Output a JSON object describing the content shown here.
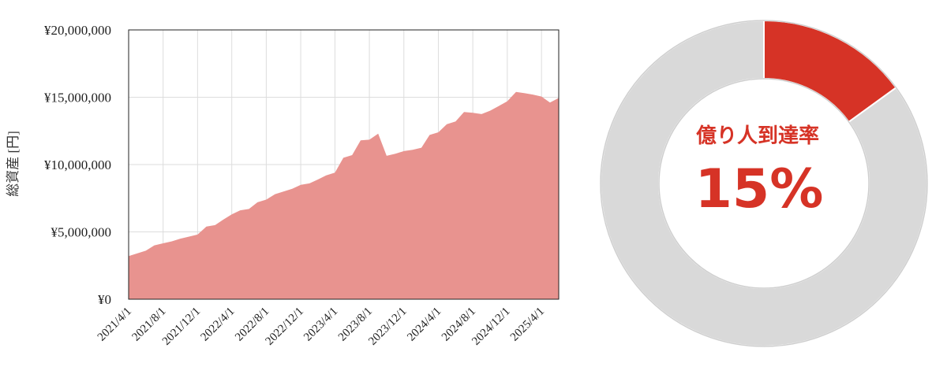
{
  "chart_data": [
    {
      "type": "area",
      "title": "",
      "xlabel": "",
      "ylabel": "総資産 [円]",
      "ylim": [
        0,
        20000000
      ],
      "yticks": [
        0,
        5000000,
        10000000,
        15000000,
        20000000
      ],
      "ytick_labels": [
        "¥0",
        "¥5,000,000",
        "¥10,000,000",
        "¥15,000,000",
        "¥20,000,000"
      ],
      "xticks": [
        "2021/4/1",
        "2021/8/1",
        "2021/12/1",
        "2022/4/1",
        "2022/8/1",
        "2022/12/1",
        "2023/4/1",
        "2023/8/1",
        "2023/12/1",
        "2024/4/1",
        "2024/8/1",
        "2024/12/1",
        "2025/4/1"
      ],
      "xlim": [
        "2021/4/1",
        "2025/6/1"
      ],
      "grid": true,
      "color": "#e8938f",
      "series": [
        {
          "x": [
            "2021/4/1",
            "2021/5/1",
            "2021/6/1",
            "2021/7/1",
            "2021/8/1",
            "2021/9/1",
            "2021/10/1",
            "2021/11/1",
            "2021/12/1",
            "2022/1/1",
            "2022/2/1",
            "2022/3/1",
            "2022/4/1",
            "2022/5/1",
            "2022/6/1",
            "2022/7/1",
            "2022/8/1",
            "2022/9/1",
            "2022/10/1",
            "2022/11/1",
            "2022/12/1",
            "2023/1/1",
            "2023/2/1",
            "2023/3/1",
            "2023/4/1",
            "2023/5/1",
            "2023/6/1",
            "2023/7/1",
            "2023/8/1",
            "2023/9/1",
            "2023/10/1",
            "2023/11/1",
            "2023/12/1",
            "2024/1/1",
            "2024/2/1",
            "2024/3/1",
            "2024/4/1",
            "2024/5/1",
            "2024/6/1",
            "2024/7/1",
            "2024/8/1",
            "2024/9/1",
            "2024/10/1",
            "2024/11/1",
            "2024/12/1",
            "2025/1/1",
            "2025/2/1",
            "2025/3/1",
            "2025/4/1",
            "2025/5/1",
            "2025/6/1"
          ],
          "y": [
            3200000,
            3400000,
            3600000,
            4000000,
            4150000,
            4300000,
            4500000,
            4650000,
            4800000,
            5400000,
            5500000,
            5900000,
            6300000,
            6600000,
            6700000,
            7200000,
            7400000,
            7800000,
            8000000,
            8200000,
            8500000,
            8600000,
            8900000,
            9200000,
            9400000,
            10500000,
            10700000,
            11800000,
            11850000,
            12300000,
            10650000,
            10800000,
            11000000,
            11100000,
            11250000,
            12200000,
            12400000,
            13000000,
            13200000,
            13900000,
            13850000,
            13750000,
            14000000,
            14350000,
            14700000,
            15400000,
            15300000,
            15200000,
            15050000,
            14600000,
            14950000
          ]
        }
      ]
    },
    {
      "type": "pie",
      "title": "億り人到達率",
      "value_label": "15%",
      "values": [
        15,
        85
      ],
      "colors": [
        "#d63326",
        "#d9d9d9"
      ]
    }
  ]
}
